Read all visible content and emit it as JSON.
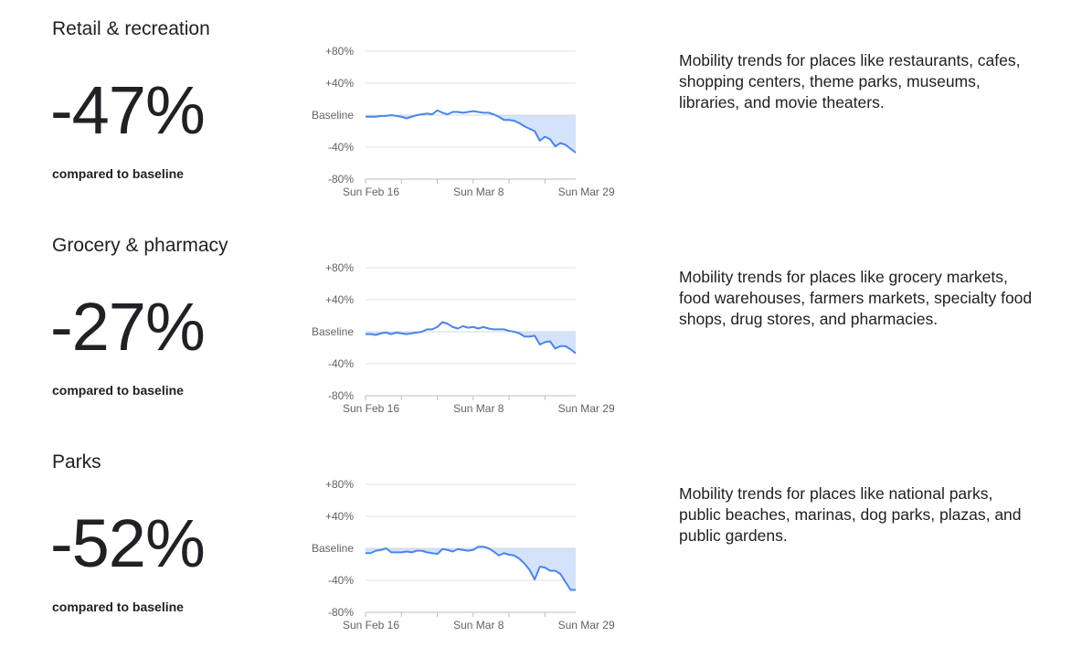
{
  "colors": {
    "line": "#4a86e8",
    "fill": "#d4e2fb",
    "grid": "#e0e0e0",
    "axis": "#bdbdbd",
    "tick_text": "#5f6368",
    "text": "#202124"
  },
  "sections": [
    {
      "title": "Retail & recreation",
      "percent": "-47%",
      "baseline_note": "compared to baseline",
      "description": "Mobility trends for places like restaurants, cafes, shopping centers, theme parks, museums, libraries, and movie theaters."
    },
    {
      "title": "Grocery & pharmacy",
      "percent": "-27%",
      "baseline_note": "compared to baseline",
      "description": "Mobility trends for places like grocery markets, food warehouses, farmers markets, specialty food shops, drug stores, and pharmacies."
    },
    {
      "title": "Parks",
      "percent": "-52%",
      "baseline_note": "compared to baseline",
      "description": "Mobility trends for places like national parks, public beaches, marinas, dog parks, plazas, and public gardens."
    }
  ],
  "chart_data": [
    {
      "type": "area",
      "title": "Retail & recreation",
      "ylim": [
        -80,
        80
      ],
      "yticks": [
        80,
        40,
        0,
        -40,
        -80
      ],
      "ytick_labels": [
        "+80%",
        "+40%",
        "Baseline",
        "-40%",
        "-80%"
      ],
      "xticks": [
        0,
        21,
        42
      ],
      "xtick_labels": [
        "Sun Feb 16",
        "Sun Mar 8",
        "Sun Mar 29"
      ],
      "grid": true,
      "series": [
        {
          "values": [
            -2,
            -2,
            -2,
            -1,
            -1,
            0,
            -1,
            -2,
            -4,
            -2,
            0,
            1,
            2,
            1,
            6,
            3,
            1,
            4,
            4,
            3,
            4,
            5,
            4,
            3,
            3,
            1,
            -2,
            -6,
            -6,
            -7,
            -10,
            -14,
            -17,
            -20,
            -32,
            -27,
            -30,
            -39,
            -35,
            -37,
            -42,
            -47
          ]
        }
      ]
    },
    {
      "type": "area",
      "title": "Grocery & pharmacy",
      "ylim": [
        -80,
        80
      ],
      "yticks": [
        80,
        40,
        0,
        -40,
        -80
      ],
      "ytick_labels": [
        "+80%",
        "+40%",
        "Baseline",
        "-40%",
        "-80%"
      ],
      "xticks": [
        0,
        21,
        42
      ],
      "xtick_labels": [
        "Sun Feb 16",
        "Sun Mar 8",
        "Sun Mar 29"
      ],
      "grid": true,
      "series": [
        {
          "values": [
            -3,
            -3,
            -4,
            -2,
            -1,
            -3,
            -1,
            -2,
            -3,
            -2,
            -1,
            0,
            3,
            3,
            6,
            12,
            10,
            6,
            4,
            7,
            5,
            6,
            4,
            6,
            4,
            3,
            3,
            3,
            1,
            0,
            -2,
            -6,
            -6,
            -5,
            -16,
            -13,
            -12,
            -21,
            -18,
            -18,
            -22,
            -27
          ]
        }
      ]
    },
    {
      "type": "area",
      "title": "Parks",
      "ylim": [
        -80,
        80
      ],
      "yticks": [
        80,
        40,
        0,
        -40,
        -80
      ],
      "ytick_labels": [
        "+80%",
        "+40%",
        "Baseline",
        "-40%",
        "-80%"
      ],
      "xticks": [
        0,
        21,
        42
      ],
      "xtick_labels": [
        "Sun Feb 16",
        "Sun Mar 8",
        "Sun Mar 29"
      ],
      "grid": true,
      "series": [
        {
          "values": [
            -6,
            -6,
            -3,
            -2,
            0,
            -5,
            -5,
            -5,
            -4,
            -5,
            -3,
            -3,
            -5,
            -6,
            -7,
            -1,
            -2,
            -4,
            -1,
            -2,
            -3,
            -2,
            2,
            2,
            0,
            -4,
            -9,
            -6,
            -8,
            -9,
            -13,
            -19,
            -27,
            -39,
            -23,
            -24,
            -28,
            -28,
            -32,
            -42,
            -52,
            -52
          ]
        }
      ]
    }
  ]
}
